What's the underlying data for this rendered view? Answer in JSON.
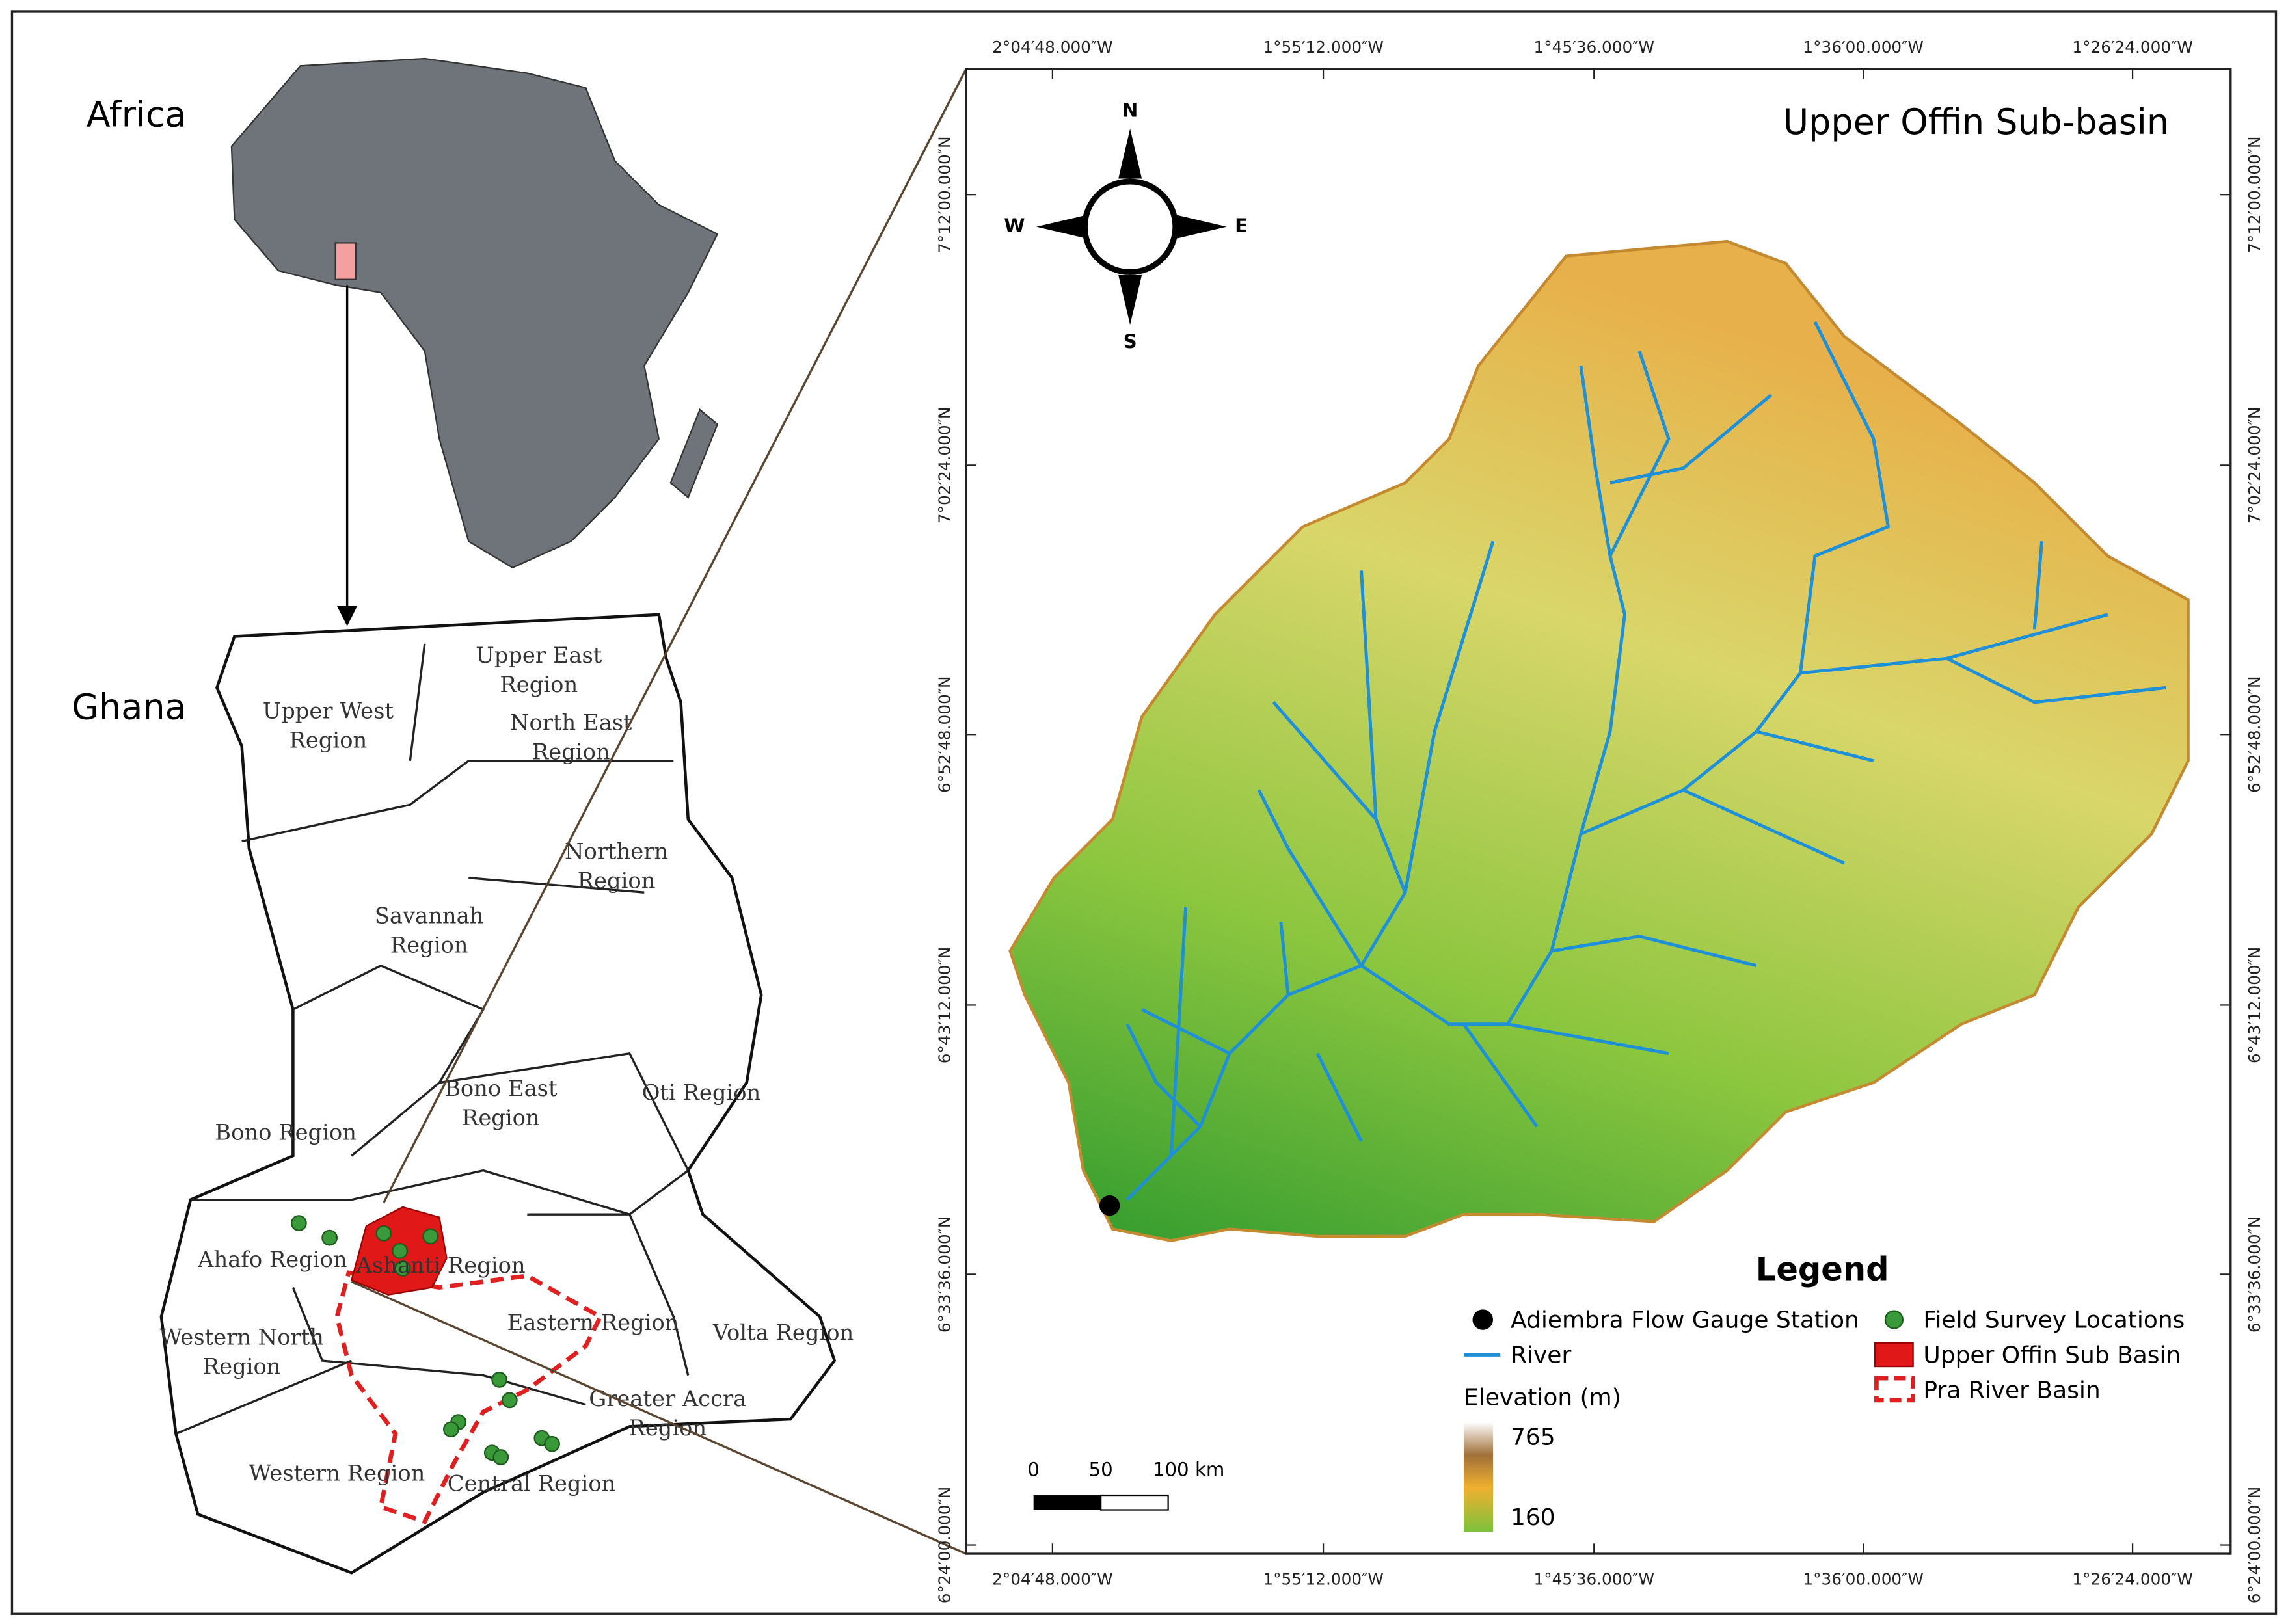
{
  "inset": {
    "africa_label": "Africa",
    "ghana_label": "Ghana",
    "regions": [
      {
        "lines": [
          "Upper West",
          "Region"
        ]
      },
      {
        "lines": [
          "Upper East",
          "Region"
        ]
      },
      {
        "lines": [
          "North East",
          "Region"
        ]
      },
      {
        "lines": [
          "Northern",
          "Region"
        ]
      },
      {
        "lines": [
          "Savannah",
          "Region"
        ]
      },
      {
        "lines": [
          "Bono East",
          "Region"
        ]
      },
      {
        "lines": [
          "Oti Region"
        ]
      },
      {
        "lines": [
          "Bono Region"
        ]
      },
      {
        "lines": [
          "Ahafo Region"
        ]
      },
      {
        "lines": [
          "Ashanti Region"
        ]
      },
      {
        "lines": [
          "Western North",
          "Region"
        ]
      },
      {
        "lines": [
          "Eastern Region"
        ]
      },
      {
        "lines": [
          "Volta Region"
        ]
      },
      {
        "lines": [
          "Greater Accra",
          "Region"
        ]
      },
      {
        "lines": [
          "Western Region"
        ]
      },
      {
        "lines": [
          "Central Region"
        ]
      }
    ]
  },
  "map": {
    "title": "Upper Offin Sub-basin",
    "compass": {
      "n": "N",
      "s": "S",
      "e": "E",
      "w": "W"
    },
    "x_labels": [
      "2°04′48.000″W",
      "1°55′12.000″W",
      "1°45′36.000″W",
      "1°36′00.000″W",
      "1°26′24.000″W"
    ],
    "y_labels": [
      "7°12′00.000″N",
      "7°02′24.000″N",
      "6°52′48.000″N",
      "6°43′12.000″N",
      "6°33′36.000″N",
      "6°24′00.000″N"
    ],
    "scale_bar": [
      "0",
      "50",
      "100 km"
    ],
    "legend": {
      "title": "Legend",
      "items": [
        "Adiembra Flow Gauge Station",
        "Field Survey Locations",
        "River",
        "Upper Offin Sub Basin",
        "Pra River Basin"
      ],
      "elevation_title": "Elevation (m)",
      "elevation_max": "765",
      "elevation_min": "160"
    }
  }
}
